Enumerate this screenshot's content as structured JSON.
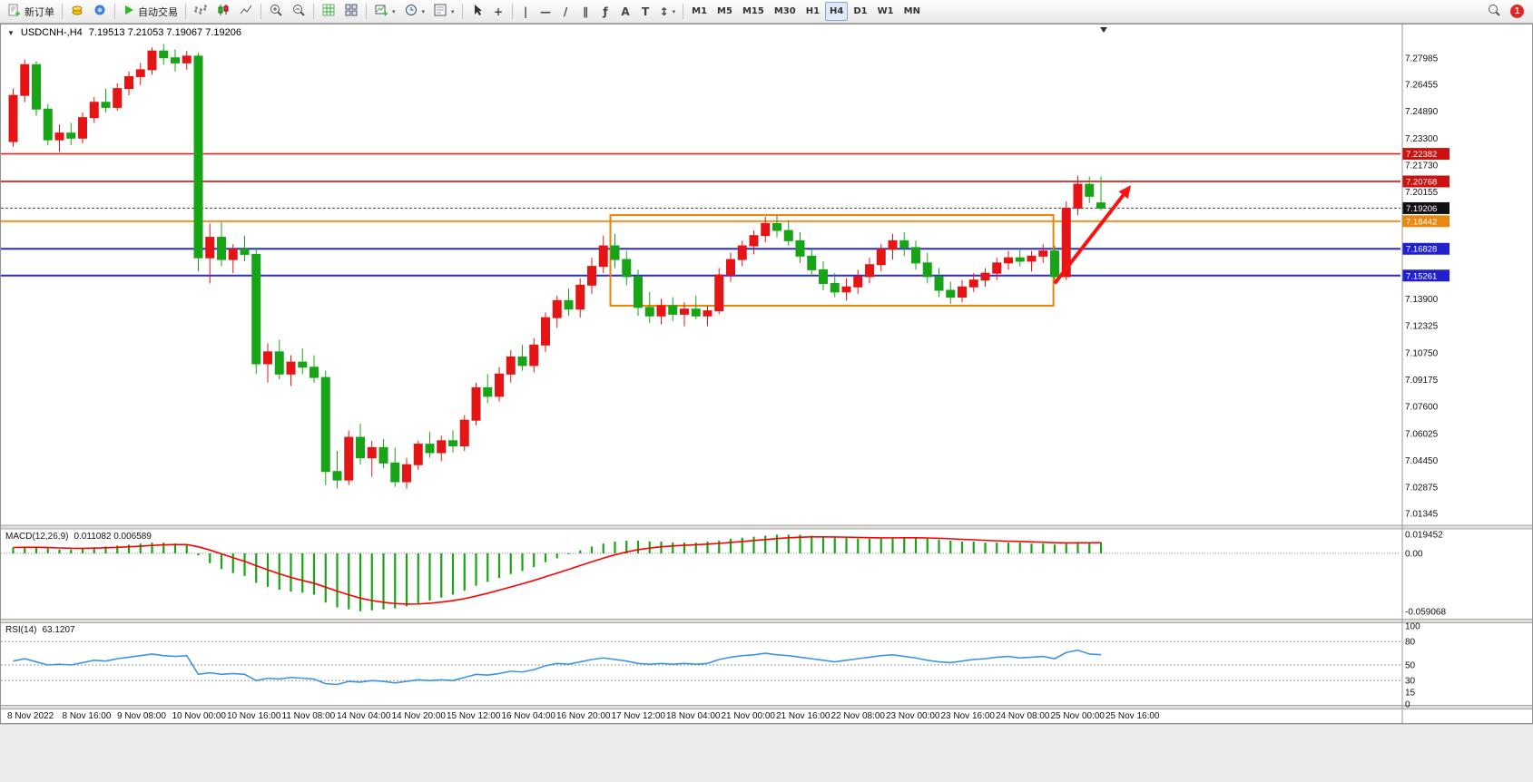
{
  "toolbar": {
    "new_order_label": "新订单",
    "auto_trading_label": "自动交易",
    "timeframes": [
      "M1",
      "M5",
      "M15",
      "M30",
      "H1",
      "H4",
      "D1",
      "W1",
      "MN"
    ],
    "active_timeframe": "H4",
    "notification_count": "1"
  },
  "icons": {
    "one_click": "▼",
    "dropdown": "▾",
    "crosshair": "+",
    "vertical_line": "|",
    "horizontal_line": "—",
    "trendline": "/",
    "channel": "∥",
    "fibonacci": "ƒ",
    "text": "A",
    "label": "T",
    "arrows": "↕"
  },
  "chart": {
    "symbol_period": "USDCNH-,H4",
    "ohlc": "7.19513 7.21053 7.19067 7.19206"
  },
  "indicators": {
    "macd_label": "MACD(12,26,9)",
    "macd_values": "0.011082 0.006589",
    "rsi_label": "RSI(14)",
    "rsi_value": "63.1207"
  },
  "axes": {
    "price_labels": [
      "7.27985",
      "7.26455",
      "7.24890",
      "7.23300",
      "7.21730",
      "7.20155",
      "7.13900",
      "7.12325",
      "7.10750",
      "7.09175",
      "7.07600",
      "7.06025",
      "7.04450",
      "7.02875",
      "7.01345"
    ],
    "macd_labels": [
      "0.019452",
      "0.00",
      "-0.059068"
    ],
    "rsi_labels": [
      "100",
      "80",
      "50",
      "30",
      "15",
      "0"
    ],
    "time_labels": [
      "8 Nov 2022",
      "8 Nov 16:00",
      "9 Nov 08:00",
      "10 Nov 00:00",
      "10 Nov 16:00",
      "11 Nov 08:00",
      "14 Nov 04:00",
      "14 Nov 20:00",
      "15 Nov 12:00",
      "16 Nov 04:00",
      "16 Nov 20:00",
      "17 Nov 12:00",
      "18 Nov 04:00",
      "21 Nov 00:00",
      "21 Nov 16:00",
      "22 Nov 08:00",
      "23 Nov 00:00",
      "23 Nov 16:00",
      "24 Nov 08:00",
      "25 Nov 00:00",
      "25 Nov 16:00"
    ]
  },
  "price_tags": [
    {
      "label": "7.22382",
      "color": "#cc1111"
    },
    {
      "label": "7.20768",
      "color": "#cc1111"
    },
    {
      "label": "7.19206",
      "color": "#111111"
    },
    {
      "label": "7.18442",
      "color": "#e8880f"
    },
    {
      "label": "7.16828",
      "color": "#2020cc"
    },
    {
      "label": "7.15261",
      "color": "#2020cc"
    }
  ],
  "chart_data": {
    "type": "candlestick",
    "symbol": "USDCNH-",
    "period": "H4",
    "ylim": [
      7.005,
      7.303
    ],
    "colors": {
      "up": "#e51515",
      "down": "#17a517",
      "macd_hist": "#17a517",
      "macd_signal": "#ff0000",
      "rsi_line": "#3e96e0",
      "box": "#ef8200",
      "arrow": "#ff1010"
    },
    "bid_price": 7.19206,
    "hlines": [
      {
        "price": 7.22382,
        "color": "#ee2222",
        "width": 1.6
      },
      {
        "price": 7.20768,
        "color": "#cc0000",
        "width": 1.6
      },
      {
        "price": 7.18442,
        "color": "#f59222",
        "width": 2
      },
      {
        "price": 7.16828,
        "color": "#2b2bd5",
        "width": 2
      },
      {
        "price": 7.15261,
        "color": "#2b2bd5",
        "width": 2
      }
    ],
    "box": {
      "from_index": 52,
      "to_index": 89.5,
      "top": 7.188,
      "bottom": 7.135
    },
    "arrow": {
      "from_index": 90,
      "from_price": 7.148,
      "to_index": 96.6,
      "to_price": 7.2055
    },
    "candles": [
      [
        7.231,
        7.262,
        7.228,
        7.258
      ],
      [
        7.258,
        7.279,
        7.254,
        7.276
      ],
      [
        7.276,
        7.278,
        7.246,
        7.25
      ],
      [
        7.25,
        7.253,
        7.229,
        7.232
      ],
      [
        7.232,
        7.241,
        7.225,
        7.236
      ],
      [
        7.236,
        7.242,
        7.229,
        7.233
      ],
      [
        7.233,
        7.248,
        7.23,
        7.245
      ],
      [
        7.245,
        7.257,
        7.242,
        7.254
      ],
      [
        7.254,
        7.262,
        7.248,
        7.251
      ],
      [
        7.251,
        7.265,
        7.249,
        7.262
      ],
      [
        7.262,
        7.272,
        7.258,
        7.269
      ],
      [
        7.269,
        7.277,
        7.264,
        7.273
      ],
      [
        7.273,
        7.286,
        7.27,
        7.284
      ],
      [
        7.284,
        7.288,
        7.276,
        7.28
      ],
      [
        7.28,
        7.285,
        7.272,
        7.277
      ],
      [
        7.277,
        7.284,
        7.273,
        7.281
      ],
      [
        7.281,
        7.283,
        7.155,
        7.163
      ],
      [
        7.163,
        7.183,
        7.148,
        7.175
      ],
      [
        7.175,
        7.184,
        7.158,
        7.162
      ],
      [
        7.162,
        7.171,
        7.154,
        7.168
      ],
      [
        7.168,
        7.176,
        7.161,
        7.165
      ],
      [
        7.165,
        7.169,
        7.095,
        7.101
      ],
      [
        7.101,
        7.113,
        7.09,
        7.108
      ],
      [
        7.108,
        7.115,
        7.092,
        7.095
      ],
      [
        7.095,
        7.106,
        7.088,
        7.102
      ],
      [
        7.102,
        7.11,
        7.095,
        7.099
      ],
      [
        7.099,
        7.106,
        7.09,
        7.093
      ],
      [
        7.093,
        7.097,
        7.03,
        7.038
      ],
      [
        7.038,
        7.05,
        7.028,
        7.033
      ],
      [
        7.033,
        7.062,
        7.03,
        7.058
      ],
      [
        7.058,
        7.066,
        7.042,
        7.046
      ],
      [
        7.046,
        7.056,
        7.035,
        7.052
      ],
      [
        7.052,
        7.057,
        7.04,
        7.043
      ],
      [
        7.043,
        7.052,
        7.029,
        7.032
      ],
      [
        7.032,
        7.046,
        7.028,
        7.042
      ],
      [
        7.042,
        7.056,
        7.039,
        7.054
      ],
      [
        7.054,
        7.061,
        7.046,
        7.049
      ],
      [
        7.049,
        7.059,
        7.044,
        7.056
      ],
      [
        7.056,
        7.062,
        7.049,
        7.053
      ],
      [
        7.053,
        7.071,
        7.05,
        7.068
      ],
      [
        7.068,
        7.09,
        7.065,
        7.087
      ],
      [
        7.087,
        7.095,
        7.078,
        7.082
      ],
      [
        7.082,
        7.099,
        7.079,
        7.095
      ],
      [
        7.095,
        7.109,
        7.09,
        7.105
      ],
      [
        7.105,
        7.112,
        7.097,
        7.1
      ],
      [
        7.1,
        7.116,
        7.096,
        7.112
      ],
      [
        7.112,
        7.131,
        7.108,
        7.128
      ],
      [
        7.128,
        7.141,
        7.122,
        7.138
      ],
      [
        7.138,
        7.145,
        7.129,
        7.133
      ],
      [
        7.133,
        7.151,
        7.128,
        7.147
      ],
      [
        7.147,
        7.163,
        7.142,
        7.158
      ],
      [
        7.158,
        7.176,
        7.154,
        7.17
      ],
      [
        7.17,
        7.177,
        7.157,
        7.162
      ],
      [
        7.162,
        7.167,
        7.147,
        7.152
      ],
      [
        7.152,
        7.156,
        7.129,
        7.134
      ],
      [
        7.134,
        7.143,
        7.125,
        7.129
      ],
      [
        7.129,
        7.139,
        7.124,
        7.135
      ],
      [
        7.135,
        7.14,
        7.126,
        7.13
      ],
      [
        7.13,
        7.137,
        7.123,
        7.133
      ],
      [
        7.133,
        7.141,
        7.127,
        7.129
      ],
      [
        7.129,
        7.135,
        7.123,
        7.132
      ],
      [
        7.132,
        7.157,
        7.13,
        7.153
      ],
      [
        7.153,
        7.166,
        7.149,
        7.162
      ],
      [
        7.162,
        7.173,
        7.158,
        7.17
      ],
      [
        7.17,
        7.179,
        7.165,
        7.176
      ],
      [
        7.176,
        7.187,
        7.172,
        7.183
      ],
      [
        7.183,
        7.188,
        7.175,
        7.179
      ],
      [
        7.179,
        7.185,
        7.17,
        7.173
      ],
      [
        7.173,
        7.178,
        7.16,
        7.164
      ],
      [
        7.164,
        7.169,
        7.152,
        7.156
      ],
      [
        7.156,
        7.161,
        7.144,
        7.148
      ],
      [
        7.148,
        7.154,
        7.14,
        7.143
      ],
      [
        7.143,
        7.151,
        7.138,
        7.146
      ],
      [
        7.146,
        7.156,
        7.142,
        7.152
      ],
      [
        7.152,
        7.163,
        7.148,
        7.159
      ],
      [
        7.159,
        7.171,
        7.155,
        7.168
      ],
      [
        7.168,
        7.177,
        7.162,
        7.173
      ],
      [
        7.173,
        7.178,
        7.164,
        7.169
      ],
      [
        7.169,
        7.173,
        7.156,
        7.16
      ],
      [
        7.16,
        7.166,
        7.148,
        7.152
      ],
      [
        7.152,
        7.157,
        7.14,
        7.144
      ],
      [
        7.144,
        7.149,
        7.136,
        7.14
      ],
      [
        7.14,
        7.15,
        7.137,
        7.146
      ],
      [
        7.146,
        7.154,
        7.143,
        7.15
      ],
      [
        7.15,
        7.157,
        7.146,
        7.154
      ],
      [
        7.154,
        7.163,
        7.15,
        7.16
      ],
      [
        7.16,
        7.167,
        7.156,
        7.163
      ],
      [
        7.163,
        7.169,
        7.158,
        7.161
      ],
      [
        7.161,
        7.167,
        7.155,
        7.164
      ],
      [
        7.164,
        7.171,
        7.16,
        7.167
      ],
      [
        7.167,
        7.17,
        7.148,
        7.152
      ],
      [
        7.152,
        7.196,
        7.15,
        7.192
      ],
      [
        7.192,
        7.211,
        7.188,
        7.206
      ],
      [
        7.206,
        7.2105,
        7.195,
        7.199
      ],
      [
        7.19513,
        7.21053,
        7.19067,
        7.19206
      ]
    ],
    "macd": {
      "params": "12,26,9",
      "hist_last": 0.011082,
      "signal_last": 0.006589,
      "range": [
        -0.059068,
        0.019452
      ],
      "hist": [
        0.006,
        0.007,
        0.006,
        0.005,
        0.004,
        0.004,
        0.005,
        0.006,
        0.007,
        0.008,
        0.009,
        0.01,
        0.011,
        0.011,
        0.01,
        0.009,
        -0.002,
        -0.01,
        -0.016,
        -0.02,
        -0.023,
        -0.03,
        -0.034,
        -0.037,
        -0.039,
        -0.04,
        -0.042,
        -0.05,
        -0.055,
        -0.057,
        -0.059,
        -0.058,
        -0.057,
        -0.056,
        -0.054,
        -0.051,
        -0.048,
        -0.045,
        -0.042,
        -0.038,
        -0.033,
        -0.029,
        -0.025,
        -0.021,
        -0.018,
        -0.014,
        -0.009,
        -0.005,
        -0.001,
        0.003,
        0.007,
        0.01,
        0.012,
        0.013,
        0.013,
        0.012,
        0.012,
        0.011,
        0.011,
        0.011,
        0.012,
        0.013,
        0.015,
        0.016,
        0.017,
        0.018,
        0.019,
        0.019,
        0.019,
        0.018,
        0.017,
        0.016,
        0.016,
        0.015,
        0.015,
        0.015,
        0.016,
        0.016,
        0.016,
        0.015,
        0.014,
        0.013,
        0.012,
        0.012,
        0.011,
        0.011,
        0.011,
        0.011,
        0.01,
        0.01,
        0.009,
        0.01,
        0.011,
        0.011,
        0.011082
      ]
    },
    "rsi": {
      "period": 14,
      "last": 63.1207,
      "levels": [
        80,
        50,
        30
      ],
      "values": [
        55,
        58,
        54,
        50,
        51,
        50,
        53,
        56,
        55,
        58,
        60,
        62,
        64,
        62,
        61,
        62,
        38,
        40,
        38,
        39,
        38,
        30,
        33,
        32,
        34,
        33,
        32,
        26,
        25,
        29,
        28,
        30,
        29,
        27,
        29,
        31,
        30,
        31,
        30,
        34,
        38,
        37,
        39,
        42,
        41,
        44,
        49,
        52,
        51,
        54,
        57,
        59,
        57,
        55,
        52,
        51,
        52,
        51,
        52,
        51,
        52,
        57,
        60,
        62,
        63,
        65,
        63,
        62,
        60,
        58,
        56,
        54,
        56,
        58,
        60,
        62,
        63,
        61,
        59,
        56,
        54,
        53,
        55,
        57,
        58,
        60,
        61,
        59,
        60,
        61,
        58,
        66,
        69,
        64,
        63.12
      ]
    }
  }
}
